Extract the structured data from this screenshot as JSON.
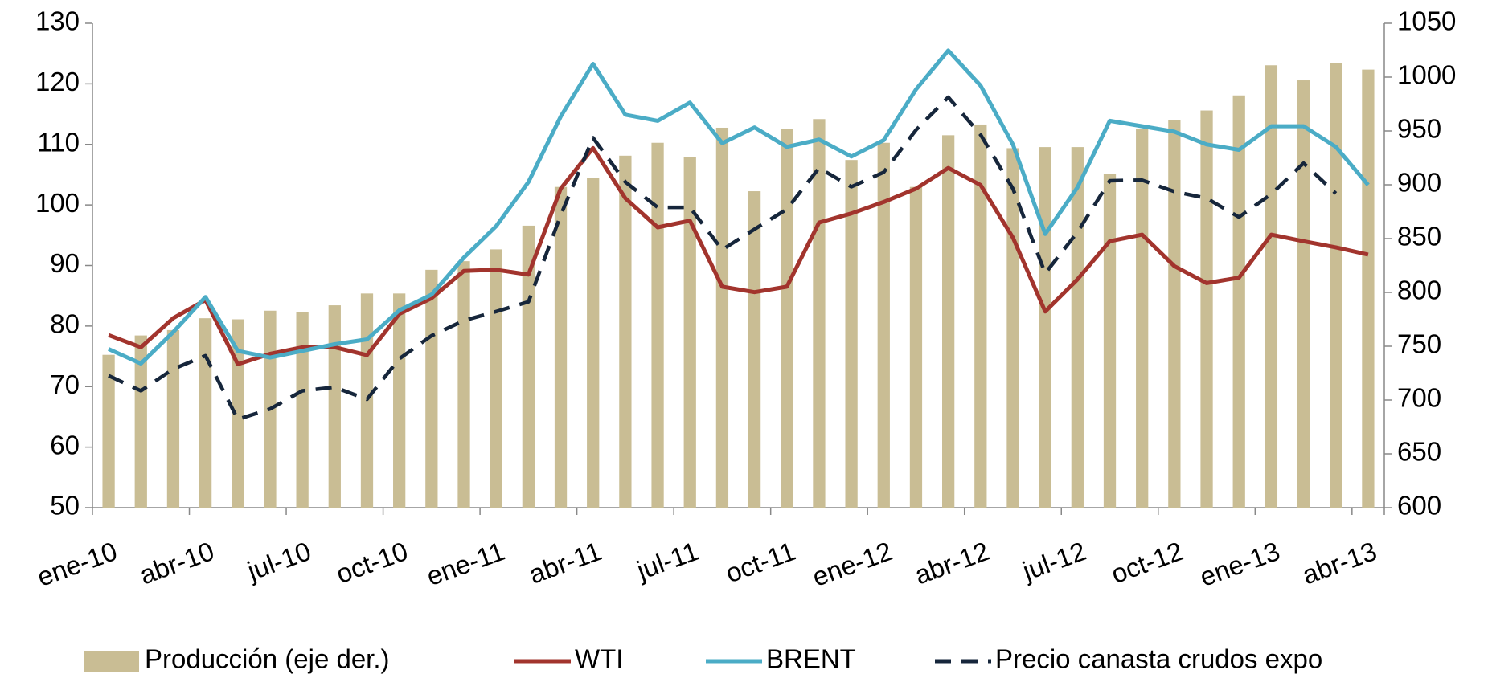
{
  "chart_data": {
    "type": "bar-line",
    "categories": [
      "ene-10",
      null,
      null,
      "abr-10",
      null,
      null,
      "jul-10",
      null,
      null,
      "oct-10",
      null,
      null,
      "ene-11",
      null,
      null,
      "abr-11",
      null,
      null,
      "jul-11",
      null,
      null,
      "oct-11",
      null,
      null,
      "ene-12",
      null,
      null,
      "abr-12",
      null,
      null,
      "jul-12",
      null,
      null,
      "oct-12",
      null,
      null,
      "ene-13",
      null,
      null,
      "abr-13"
    ],
    "ylim": [
      50,
      130
    ],
    "yticks": [
      50,
      60,
      70,
      80,
      90,
      100,
      110,
      120,
      130
    ],
    "y2lim": [
      600,
      1050
    ],
    "y2ticks": [
      600,
      650,
      700,
      750,
      800,
      850,
      900,
      950,
      1000,
      1050
    ],
    "series": [
      {
        "name": "Producción (eje der.)",
        "type": "bar",
        "axis": "y2",
        "color": "#c9bd94",
        "values": [
          742,
          760,
          765,
          776,
          775,
          783,
          782,
          788,
          799,
          799,
          821,
          829,
          840,
          862,
          898,
          906,
          927,
          939,
          926,
          953,
          894,
          952,
          961,
          923,
          939,
          898,
          946,
          956,
          934,
          935,
          935,
          910,
          952,
          960,
          969,
          983,
          1011,
          997,
          1013,
          1007
        ]
      },
      {
        "name": "WTI",
        "type": "line",
        "color": "#a2342d",
        "dash": false,
        "values": [
          78.5,
          76.5,
          81.3,
          84.3,
          73.7,
          75.4,
          76.5,
          76.5,
          75.2,
          82,
          84.6,
          89.1,
          89.3,
          88.5,
          102.7,
          109.4,
          101.1,
          96.3,
          97.4,
          86.5,
          85.6,
          86.5,
          97.1,
          98.6,
          100.5,
          102.7,
          106.1,
          103.3,
          94.6,
          82.4,
          87.7,
          94,
          95.1,
          89.9,
          87.1,
          88,
          95.1,
          94,
          93,
          91.8
        ]
      },
      {
        "name": "BRENT",
        "type": "line",
        "color": "#4bacc6",
        "dash": false,
        "values": [
          76.2,
          73.8,
          79,
          84.8,
          75.9,
          74.8,
          75.9,
          77,
          77.8,
          82.6,
          85.2,
          91.3,
          96.5,
          103.8,
          114.6,
          123.3,
          114.9,
          113.9,
          116.9,
          110.2,
          112.8,
          109.6,
          110.8,
          108,
          110.7,
          119.1,
          125.5,
          119.7,
          110,
          95.2,
          102.9,
          113.9,
          113,
          112.1,
          110,
          109.1,
          113,
          113,
          109.6,
          103.3
        ]
      },
      {
        "name": "Precio canasta crudos expo",
        "type": "line",
        "color": "#16263b",
        "dash": true,
        "values": [
          71.8,
          69.3,
          72.9,
          75.1,
          64.6,
          66.3,
          69.3,
          69.9,
          67.9,
          74.6,
          78.4,
          80.9,
          82.4,
          84,
          98.3,
          111.1,
          103.8,
          99.6,
          99.6,
          92.6,
          96,
          99.3,
          106.1,
          103,
          105.4,
          112.4,
          117.8,
          111.6,
          102.7,
          88.7,
          95.5,
          104,
          104.1,
          102.2,
          101.1,
          98,
          101.8,
          106.9,
          101.9,
          null
        ]
      }
    ]
  }
}
